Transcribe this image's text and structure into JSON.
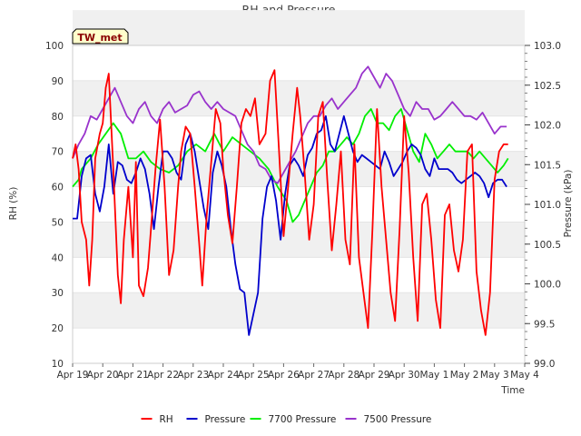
{
  "chart_data": {
    "type": "line",
    "title": "RH and Pressure",
    "tag": "TW_met",
    "xlabel": "Time",
    "ylabel_left": "RH (%)",
    "ylabel_right": "Pressure (kPa)",
    "x_ticks": [
      "Apr 19",
      "Apr 20",
      "Apr 21",
      "Apr 22",
      "Apr 23",
      "Apr 24",
      "Apr 25",
      "Apr 26",
      "Apr 27",
      "Apr 28",
      "Apr 29",
      "Apr 30",
      "May 1",
      "May 2",
      "May 3",
      "May 4"
    ],
    "ylim_left": [
      10,
      100
    ],
    "yticks_left": [
      "10",
      "20",
      "30",
      "40",
      "50",
      "60",
      "70",
      "80",
      "90",
      "100"
    ],
    "ylim_right": [
      99.0,
      103.0
    ],
    "yticks_right": [
      "99.0",
      "99.5",
      "100.0",
      "100.5",
      "101.0",
      "101.5",
      "102.0",
      "102.5",
      "103.0"
    ],
    "x_unit": "day index (0 = Apr 19, 15 = May 4)",
    "grid": "horizontal bands",
    "legend_position": "bottom",
    "colors": {
      "RH": "#ff0000",
      "Pressure": "#0000cc",
      "7700 Pressure": "#00ee00",
      "7500 Pressure": "#9933cc",
      "band": "#f0f0f0",
      "tag_bg": "#ffffcc"
    },
    "series": [
      {
        "name": "RH",
        "axis": "left",
        "color": "#ff0000",
        "x": [
          0.0,
          0.1,
          0.2,
          0.3,
          0.45,
          0.55,
          0.65,
          0.75,
          0.9,
          1.0,
          1.1,
          1.2,
          1.35,
          1.5,
          1.6,
          1.7,
          1.85,
          2.0,
          2.1,
          2.2,
          2.35,
          2.5,
          2.6,
          2.75,
          2.9,
          3.05,
          3.2,
          3.35,
          3.5,
          3.6,
          3.75,
          3.9,
          4.05,
          4.2,
          4.3,
          4.45,
          4.6,
          4.75,
          4.9,
          5.0,
          5.15,
          5.3,
          5.45,
          5.6,
          5.75,
          5.9,
          6.05,
          6.2,
          6.4,
          6.55,
          6.7,
          6.85,
          7.0,
          7.15,
          7.3,
          7.45,
          7.55,
          7.7,
          7.85,
          8.0,
          8.15,
          8.3,
          8.45,
          8.6,
          8.75,
          8.9,
          9.05,
          9.2,
          9.35,
          9.5,
          9.65,
          9.8,
          9.95,
          10.1,
          10.25,
          10.4,
          10.55,
          10.7,
          10.85,
          11.0,
          11.15,
          11.3,
          11.45,
          11.6,
          11.75,
          11.9,
          12.05,
          12.2,
          12.35,
          12.5,
          12.65,
          12.8,
          12.95,
          13.1,
          13.25,
          13.4,
          13.55,
          13.7,
          13.85,
          14.0,
          14.15,
          14.3,
          14.45
        ],
        "values": [
          68,
          72,
          65,
          50,
          45,
          32,
          45,
          68,
          75,
          78,
          88,
          92,
          65,
          35,
          27,
          45,
          60,
          40,
          67,
          32,
          29,
          37,
          48,
          65,
          79,
          60,
          35,
          42,
          60,
          70,
          77,
          75,
          60,
          44,
          32,
          52,
          67,
          82,
          78,
          65,
          52,
          44,
          60,
          78,
          82,
          80,
          85,
          72,
          75,
          90,
          93,
          70,
          46,
          60,
          75,
          88,
          80,
          64,
          45,
          55,
          80,
          84,
          62,
          42,
          55,
          70,
          45,
          38,
          72,
          40,
          30,
          20,
          48,
          82,
          60,
          45,
          30,
          22,
          48,
          80,
          64,
          40,
          22,
          55,
          58,
          45,
          28,
          20,
          52,
          55,
          42,
          36,
          45,
          70,
          72,
          36,
          25,
          18,
          30,
          62,
          70,
          72,
          72
        ]
      },
      {
        "name": "Pressure",
        "axis": "left",
        "color": "#0000cc",
        "x": [
          0.0,
          0.15,
          0.3,
          0.45,
          0.6,
          0.75,
          0.9,
          1.05,
          1.2,
          1.35,
          1.5,
          1.65,
          1.8,
          1.95,
          2.1,
          2.25,
          2.4,
          2.55,
          2.7,
          2.85,
          3.0,
          3.15,
          3.3,
          3.45,
          3.6,
          3.75,
          3.9,
          4.05,
          4.2,
          4.35,
          4.5,
          4.65,
          4.8,
          4.95,
          5.1,
          5.25,
          5.4,
          5.55,
          5.7,
          5.85,
          6.0,
          6.15,
          6.3,
          6.45,
          6.6,
          6.75,
          6.9,
          7.05,
          7.2,
          7.35,
          7.5,
          7.65,
          7.8,
          7.95,
          8.1,
          8.25,
          8.4,
          8.55,
          8.7,
          8.85,
          9.0,
          9.15,
          9.3,
          9.45,
          9.6,
          9.75,
          9.9,
          10.05,
          10.2,
          10.35,
          10.5,
          10.65,
          10.8,
          10.95,
          11.1,
          11.25,
          11.4,
          11.55,
          11.7,
          11.85,
          12.0,
          12.15,
          12.3,
          12.45,
          12.6,
          12.75,
          12.9,
          13.05,
          13.2,
          13.35,
          13.5,
          13.65,
          13.8,
          13.95,
          14.1,
          14.25,
          14.4
        ],
        "values": [
          51,
          51,
          63,
          68,
          69,
          58,
          53,
          60,
          72,
          58,
          67,
          66,
          62,
          61,
          64,
          68,
          65,
          58,
          48,
          60,
          70,
          70,
          68,
          64,
          62,
          72,
          75,
          70,
          62,
          54,
          48,
          64,
          70,
          66,
          60,
          48,
          38,
          31,
          30,
          18,
          24,
          30,
          51,
          60,
          63,
          56,
          45,
          58,
          66,
          68,
          66,
          63,
          69,
          71,
          75,
          76,
          80,
          72,
          70,
          75,
          80,
          75,
          70,
          67,
          69,
          68,
          67,
          66,
          65,
          70,
          67,
          63,
          65,
          67,
          70,
          72,
          71,
          69,
          65,
          63,
          68,
          65,
          65,
          65,
          64,
          62,
          61,
          62,
          63,
          64,
          63,
          61,
          57,
          61,
          62,
          62,
          60
        ]
      },
      {
        "name": "7700 Pressure",
        "axis": "left",
        "color": "#00ee00",
        "x": [
          0.0,
          0.2,
          0.3,
          0.6,
          0.85,
          1.1,
          1.35,
          1.6,
          1.85,
          2.1,
          2.35,
          2.6,
          2.9,
          3.2,
          3.5,
          3.8,
          4.1,
          4.4,
          4.7,
          5.0,
          5.3,
          5.6,
          5.9,
          6.2,
          6.5,
          6.8,
          7.1,
          7.3,
          7.5,
          7.7,
          7.9,
          8.1,
          8.3,
          8.5,
          8.7,
          8.9,
          9.1,
          9.3,
          9.5,
          9.7,
          9.9,
          10.1,
          10.3,
          10.5,
          10.7,
          10.9,
          11.1,
          11.3,
          11.5,
          11.7,
          11.9,
          12.1,
          12.3,
          12.5,
          12.7,
          12.9,
          13.1,
          13.3,
          13.5,
          13.7,
          13.9,
          14.1,
          14.3,
          14.45
        ],
        "values": [
          60,
          62,
          65,
          68,
          72,
          75,
          78,
          75,
          68,
          68,
          70,
          67,
          65,
          64,
          66,
          70,
          72,
          70,
          75,
          70,
          74,
          72,
          70,
          68,
          65,
          60,
          56,
          50,
          52,
          56,
          60,
          64,
          66,
          70,
          70,
          72,
          74,
          72,
          75,
          80,
          82,
          78,
          78,
          76,
          80,
          82,
          76,
          70,
          67,
          75,
          72,
          68,
          70,
          72,
          70,
          70,
          70,
          68,
          70,
          68,
          66,
          64,
          66,
          68
        ]
      },
      {
        "name": "7500 Pressure",
        "axis": "left",
        "color": "#9933cc",
        "x": [
          0.0,
          0.2,
          0.4,
          0.6,
          0.8,
          1.0,
          1.2,
          1.4,
          1.6,
          1.8,
          2.0,
          2.2,
          2.4,
          2.6,
          2.8,
          3.0,
          3.2,
          3.4,
          3.6,
          3.8,
          4.0,
          4.2,
          4.4,
          4.6,
          4.8,
          5.0,
          5.2,
          5.4,
          5.6,
          5.8,
          6.0,
          6.2,
          6.4,
          6.6,
          6.8,
          7.0,
          7.2,
          7.4,
          7.6,
          7.8,
          8.0,
          8.2,
          8.4,
          8.6,
          8.8,
          9.0,
          9.2,
          9.4,
          9.6,
          9.8,
          10.0,
          10.2,
          10.4,
          10.6,
          10.8,
          11.0,
          11.2,
          11.4,
          11.6,
          11.8,
          12.0,
          12.2,
          12.4,
          12.6,
          12.8,
          13.0,
          13.2,
          13.4,
          13.6,
          13.8,
          14.0,
          14.2,
          14.4
        ],
        "values": [
          68,
          72,
          75,
          80,
          79,
          82,
          85,
          88,
          84,
          80,
          78,
          82,
          84,
          80,
          78,
          82,
          84,
          81,
          82,
          83,
          86,
          87,
          84,
          82,
          84,
          82,
          81,
          80,
          76,
          72,
          70,
          66,
          65,
          62,
          61,
          64,
          67,
          70,
          74,
          78,
          80,
          80,
          83,
          85,
          82,
          84,
          86,
          88,
          92,
          94,
          91,
          88,
          92,
          90,
          86,
          82,
          80,
          84,
          82,
          82,
          79,
          80,
          82,
          84,
          82,
          80,
          80,
          79,
          81,
          78,
          75,
          77,
          77
        ]
      }
    ]
  },
  "legend": [
    {
      "label": "RH",
      "color": "#ff0000"
    },
    {
      "label": "Pressure",
      "color": "#0000cc"
    },
    {
      "label": "7700 Pressure",
      "color": "#00ee00"
    },
    {
      "label": "7500 Pressure",
      "color": "#9933cc"
    }
  ]
}
